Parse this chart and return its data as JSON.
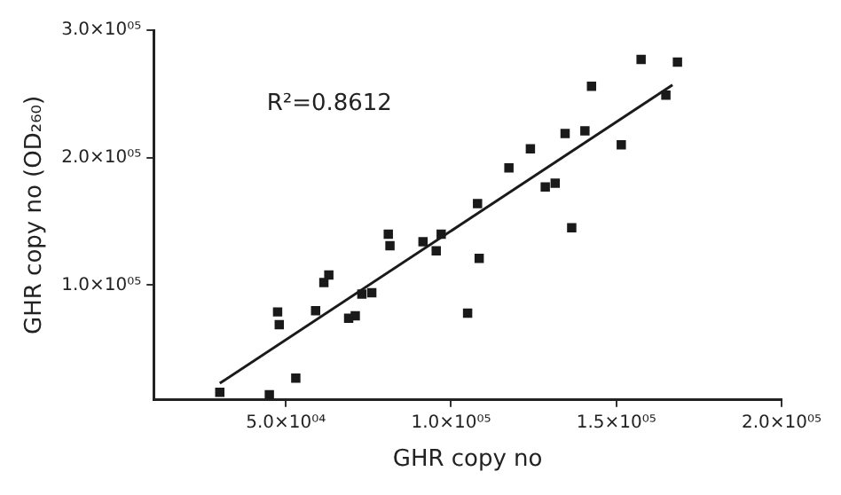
{
  "chart_data": {
    "type": "scatter",
    "xlabel": "GHR copy no",
    "ylabel": "GHR copy no (OD₂₆₀)",
    "annotations": [
      "R²=0.8612"
    ],
    "xlim": [
      10000,
      200000
    ],
    "ylim": [
      10000,
      300000
    ],
    "xticks": [
      {
        "value": 50000,
        "label": "5.0×10⁰⁴"
      },
      {
        "value": 100000,
        "label": "1.0×10⁰⁵"
      },
      {
        "value": 150000,
        "label": "1.5×10⁰⁵"
      },
      {
        "value": 200000,
        "label": "2.0×10⁰⁵"
      }
    ],
    "yticks": [
      {
        "value": 100000,
        "label": "1.0×10⁰⁵"
      },
      {
        "value": 200000,
        "label": "2.0×10⁰⁵"
      },
      {
        "value": 300000,
        "label": "3.0×10⁰⁵"
      }
    ],
    "grid": false,
    "legend": false,
    "marker": "square",
    "series": [
      {
        "color": "#1a1a1a",
        "x": [
          30000,
          45000,
          53000,
          47500,
          48000,
          59000,
          61500,
          63000,
          69000,
          71000,
          73000,
          76000,
          81000,
          81500,
          91500,
          95500,
          97000,
          105000,
          108000,
          108500,
          117500,
          124000,
          128500,
          131500,
          134500,
          136500,
          140500,
          142500,
          151500,
          157500,
          165000,
          168500
        ],
        "values": [
          16000,
          14000,
          27000,
          79000,
          69000,
          80000,
          102000,
          108000,
          74000,
          76000,
          93000,
          94000,
          140000,
          131000,
          134000,
          127000,
          140000,
          78000,
          164000,
          121000,
          192000,
          207000,
          177000,
          180000,
          219000,
          145000,
          221000,
          256000,
          210000,
          277000,
          249000,
          275000
        ]
      },
      {
        "type": "line",
        "color": "#1a1a1a",
        "marker": "none",
        "line_style": "solid",
        "x": [
          30000,
          167000
        ],
        "values": [
          23000,
          257000
        ]
      }
    ]
  }
}
